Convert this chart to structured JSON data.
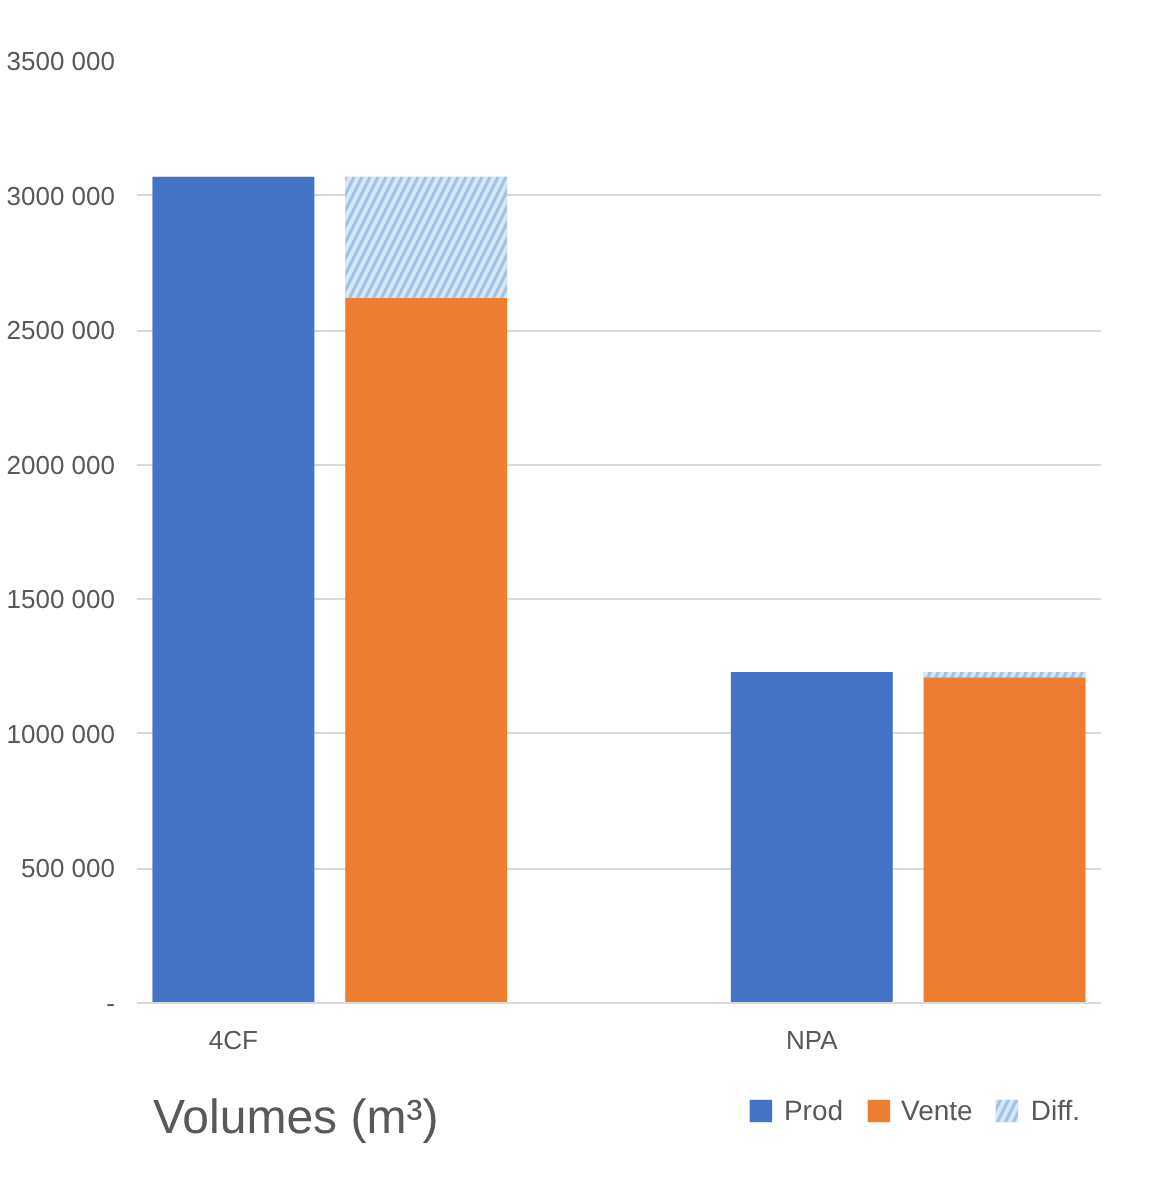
{
  "chart_data": {
    "type": "bar",
    "title": "Volumes (m³)",
    "stacked": true,
    "categories": [
      "4CF",
      null,
      null,
      "NPA",
      null
    ],
    "series": [
      {
        "name": "Prod",
        "color": "#4472c4",
        "values": [
          3070000,
          null,
          null,
          1230000,
          null
        ]
      },
      {
        "name": "Vente",
        "color": "#ed7d31",
        "values": [
          null,
          2620000,
          null,
          null,
          1210000
        ]
      },
      {
        "name": "Diff.",
        "color": "#9dc3e6",
        "values": [
          null,
          450000,
          null,
          null,
          20000
        ]
      }
    ],
    "ylim": [
      0,
      3500000
    ],
    "yticks": [
      {
        "value": 0,
        "label": "-"
      },
      {
        "value": 500000,
        "label": "500 000"
      },
      {
        "value": 1000000,
        "label": "1000 000"
      },
      {
        "value": 1500000,
        "label": "1500 000"
      },
      {
        "value": 2000000,
        "label": "2000 000"
      },
      {
        "value": 2500000,
        "label": "2500 000"
      },
      {
        "value": 3000000,
        "label": "3000 000"
      },
      {
        "value": 3500000,
        "label": "3500 000"
      }
    ],
    "grid": "y",
    "legend": "bottom right"
  }
}
